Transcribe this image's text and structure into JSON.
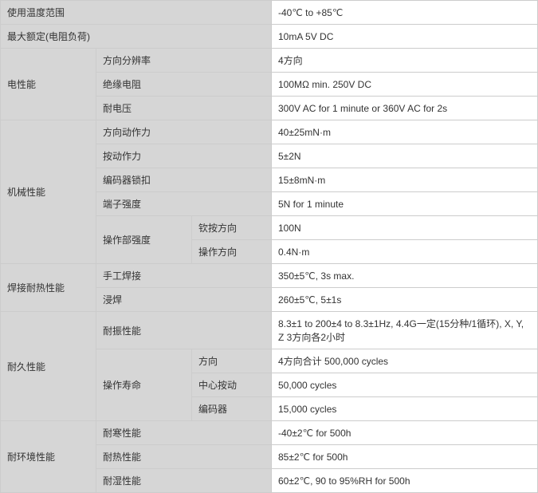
{
  "row1": {
    "label": "使用温度范围",
    "value": "-40℃ to +85℃"
  },
  "row2": {
    "label": "最大额定(电阻负荷)",
    "value": "10mA 5V DC"
  },
  "group_elec": {
    "title": "电性能",
    "r1": {
      "label": "方向分辨率",
      "value": "4方向"
    },
    "r2": {
      "label": "绝缘电阻",
      "value": "100MΩ min. 250V DC"
    },
    "r3": {
      "label": "耐电压",
      "value": "300V AC for 1 minute or 360V AC for 2s"
    }
  },
  "group_mech": {
    "title": "机械性能",
    "r1": {
      "label": "方向动作力",
      "value": "40±25mN·m"
    },
    "r2": {
      "label": "按动作力",
      "value": "5±2N"
    },
    "r3": {
      "label": "编码器锁扣",
      "value": "15±8mN·m"
    },
    "r4": {
      "label": "端子强度",
      "value": "5N for 1 minute"
    },
    "r5": {
      "label": "操作部强度",
      "s1": {
        "label": "钦按方向",
        "value": "100N"
      },
      "s2": {
        "label": "操作方向",
        "value": "0.4N·m"
      }
    }
  },
  "group_solder": {
    "title": "焊接耐热性能",
    "r1": {
      "label": "手工焊接",
      "value": "350±5℃, 3s max."
    },
    "r2": {
      "label": "浸焊",
      "value": "260±5℃, 5±1s"
    }
  },
  "group_endur": {
    "title": "耐久性能",
    "r1": {
      "label": "耐振性能",
      "value": "8.3±1 to 200±4 to 8.3±1Hz, 4.4G一定(15分种/1循环), X, Y, Z 3方向各2小时"
    },
    "r2": {
      "label": "操作寿命",
      "s1": {
        "label": "方向",
        "value": "4方向合计 500,000 cycles"
      },
      "s2": {
        "label": "中心按动",
        "value": "50,000 cycles"
      },
      "s3": {
        "label": "编码器",
        "value": "15,000 cycles"
      }
    }
  },
  "group_env": {
    "title": "耐环境性能",
    "r1": {
      "label": "耐寒性能",
      "value": "-40±2℃ for 500h"
    },
    "r2": {
      "label": "耐热性能",
      "value": "85±2℃ for 500h"
    },
    "r3": {
      "label": "耐湿性能",
      "value": "60±2℃, 90 to 95%RH for 500h"
    }
  }
}
